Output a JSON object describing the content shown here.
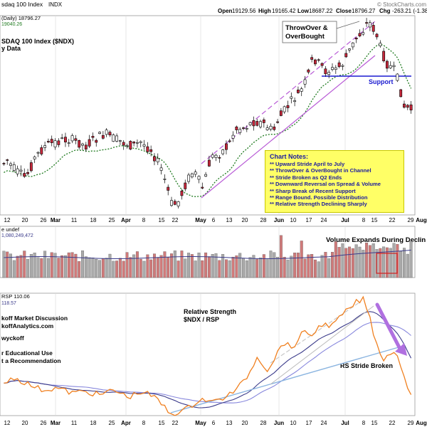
{
  "header": {
    "title": "sdaq 100 Index",
    "symbol": "INDX",
    "open_label": "Open",
    "open": "19129.56",
    "high_label": "High",
    "high": "19165.42",
    "low_label": "Low",
    "low": "18687.22",
    "close_label": "Close",
    "close": "18796.27",
    "chg_label": "Chg",
    "chg": "-263.21 (-1.38%)",
    "watermark": "© StockCharts.com",
    "legend_daily": "(Daily) 18796.27",
    "legend_ma": "19040.26",
    "legend_vol": "e undef",
    "legend_vol_value": "1,080,249,472",
    "legend_rs": "RSP 110.06",
    "legend_rs2": "118.57"
  },
  "price_panel": {
    "label_line1": "SDAQ 100 Index ($NDX)",
    "label_line2": "y Data",
    "callout": [
      "ThrowOver &",
      "OverBought"
    ],
    "support_label": "Support"
  },
  "notes": {
    "title": "Chart Notes:",
    "lines": [
      "** Upward Stride April to July",
      "** ThrowOver & OverBought in Channel",
      "** Stride Broken as Q2 Ends",
      "** Downward Reversal on Spread & Volume",
      "** Sharp Break of Recent Support",
      "** Range Bound. Possible Distribution",
      "** Relative Strength Declining Sharply"
    ]
  },
  "volume_panel": {
    "annotation": "Volume Expands During Declin"
  },
  "rs_panel": {
    "left_text": [
      "koff Market Discussion",
      "koffAnalytics.com",
      "wyckoff",
      "r Educational Use",
      "t a Recommendation"
    ],
    "title": [
      "Relative Strength",
      "$NDX / RSP"
    ],
    "stride_label": "RS Stride Broken"
  },
  "x_axis": {
    "labels": [
      "12",
      "20",
      "26",
      "Mar",
      "11",
      "18",
      "25",
      "Apr",
      "8",
      "15",
      "22",
      "May",
      "6",
      "13",
      "20",
      "28",
      "Jun",
      "10",
      "17",
      "24",
      "Jul",
      "8",
      "15",
      "22",
      "29",
      "Aug"
    ]
  },
  "chart_data": {
    "type": "candlestick",
    "period": "daily",
    "price_y_range_approx": [
      17000,
      20800
    ],
    "ohlc": [],
    "support_level_approx": 19250,
    "volume_y_max": 1080249472,
    "rs_ratio_range_approx": [
      105,
      120
    ]
  },
  "colors": {
    "up_candle": "#ffffff",
    "down_candle": "#c8283c",
    "candle_outline": "#000000",
    "ma": "#1f7a1f",
    "channel": "#b85ad6",
    "support": "#1a1ad0",
    "vol_up": "#aaaaaa",
    "vol_down": "#d07a7a",
    "vol_ma": "#3a3a8a",
    "rs_line": "#f08020",
    "rs_ma1": "#3a3a8a",
    "rs_ma2": "#8888dd",
    "arrow": "#b070e0",
    "notes_text": "#1a1aa0"
  }
}
